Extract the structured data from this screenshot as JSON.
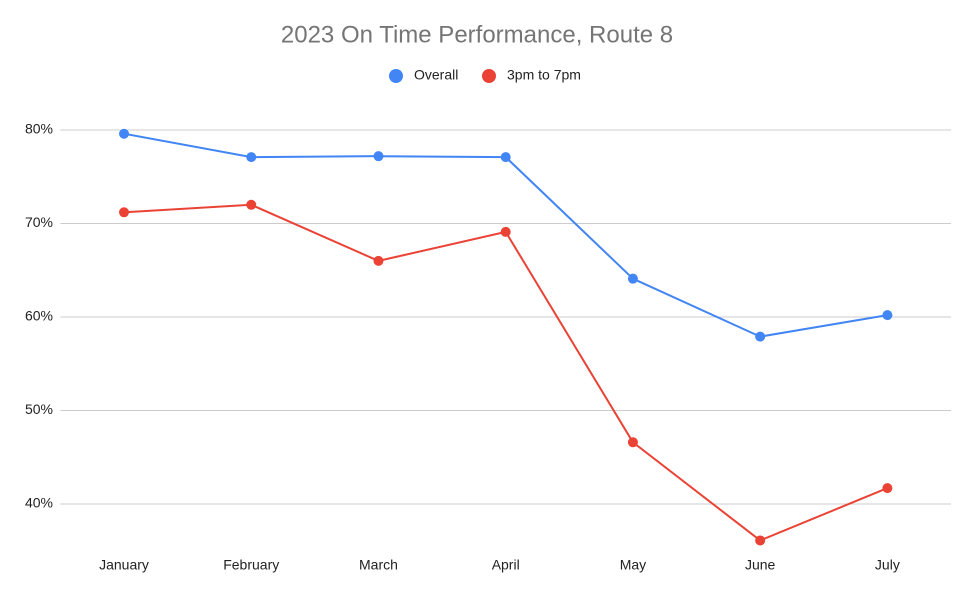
{
  "chart_data": {
    "type": "line",
    "title": "2023 On Time Performance, Route 8",
    "categories": [
      "January",
      "February",
      "March",
      "April",
      "May",
      "June",
      "July"
    ],
    "series": [
      {
        "name": "Overall",
        "color": "#4285f4",
        "values": [
          79.6,
          77.1,
          77.2,
          77.1,
          64.1,
          57.9,
          60.2
        ]
      },
      {
        "name": "3pm to 7pm",
        "color": "#ea4335",
        "values": [
          71.2,
          72.0,
          66.0,
          69.1,
          46.6,
          36.1,
          41.7
        ]
      }
    ],
    "ylim": [
      35,
      83
    ],
    "yticks": [
      {
        "value": 40,
        "label": "40%"
      },
      {
        "value": 50,
        "label": "50%"
      },
      {
        "value": 60,
        "label": "60%"
      },
      {
        "value": 70,
        "label": "70%"
      },
      {
        "value": 80,
        "label": "80%"
      }
    ],
    "grid": true,
    "legend": "top"
  }
}
